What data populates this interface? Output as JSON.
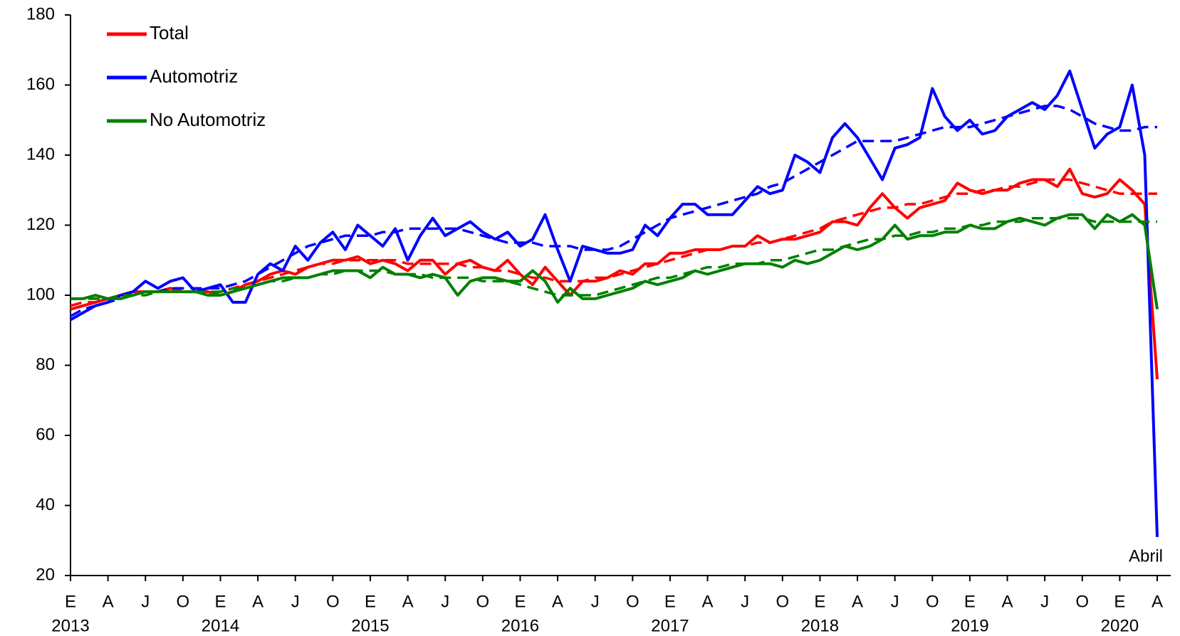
{
  "chart_data": {
    "type": "line",
    "categories": [
      "E",
      null,
      null,
      "A",
      null,
      null,
      "J",
      null,
      null,
      "O",
      null,
      null,
      "E",
      null,
      null,
      "A",
      null,
      null,
      "J",
      null,
      null,
      "O",
      null,
      null,
      "E",
      null,
      null,
      "A",
      null,
      null,
      "J",
      null,
      null,
      "O",
      null,
      null,
      "E",
      null,
      null,
      "A",
      null,
      null,
      "J",
      null,
      null,
      "O",
      null,
      null,
      "E",
      null,
      null,
      "A",
      null,
      null,
      "J",
      null,
      null,
      "O",
      null,
      null,
      "E",
      null,
      null,
      "A",
      null,
      null,
      "J",
      null,
      null,
      "O",
      null,
      null,
      "E",
      null,
      null,
      "A",
      null,
      null,
      "J",
      null,
      null,
      "O",
      null,
      null,
      "E",
      null,
      null,
      "A"
    ],
    "years": [
      "2013",
      "2014",
      "2015",
      "2016",
      "2017",
      "2018",
      "2019",
      "2020"
    ],
    "series": [
      {
        "name": "Total",
        "color": "#ff0000",
        "values": [
          96,
          97,
          98,
          99,
          100,
          101,
          101,
          101,
          102,
          101,
          101,
          101,
          100,
          101,
          103,
          104,
          106,
          107,
          106,
          108,
          109,
          110,
          110,
          111,
          109,
          110,
          109,
          107,
          110,
          110,
          106,
          109,
          110,
          108,
          107,
          110,
          106,
          103,
          108,
          104,
          100,
          104,
          104,
          105,
          107,
          106,
          109,
          109,
          112,
          112,
          113,
          113,
          113,
          114,
          114,
          117,
          115,
          116,
          116,
          117,
          118,
          121,
          121,
          120,
          125,
          129,
          125,
          122,
          125,
          126,
          127,
          132,
          130,
          129,
          130,
          130,
          132,
          133,
          133,
          131,
          136,
          129,
          128,
          129,
          133,
          130,
          126,
          76
        ],
        "trend": [
          97,
          98,
          98,
          99,
          100,
          100,
          101,
          101,
          101,
          101,
          101,
          101,
          101,
          102,
          103,
          104,
          105,
          106,
          107,
          108,
          109,
          109,
          110,
          110,
          110,
          110,
          110,
          109,
          109,
          109,
          109,
          109,
          108,
          108,
          107,
          107,
          106,
          105,
          105,
          104,
          104,
          104,
          105,
          105,
          106,
          107,
          108,
          109,
          110,
          111,
          112,
          113,
          113,
          114,
          114,
          115,
          115,
          116,
          117,
          118,
          119,
          121,
          122,
          123,
          124,
          125,
          125,
          126,
          126,
          127,
          128,
          129,
          129,
          130,
          130,
          131,
          131,
          132,
          133,
          133,
          133,
          132,
          131,
          130,
          129,
          129,
          129,
          129
        ]
      },
      {
        "name": "Automotriz",
        "color": "#0000ff",
        "values": [
          93,
          95,
          97,
          98,
          100,
          101,
          104,
          102,
          104,
          105,
          101,
          102,
          103,
          98,
          98,
          106,
          109,
          107,
          114,
          110,
          115,
          118,
          113,
          120,
          117,
          114,
          119,
          110,
          117,
          122,
          117,
          119,
          121,
          118,
          116,
          118,
          114,
          116,
          123,
          113,
          104,
          114,
          113,
          112,
          112,
          113,
          120,
          117,
          122,
          126,
          126,
          123,
          123,
          123,
          127,
          131,
          129,
          130,
          140,
          138,
          135,
          145,
          149,
          145,
          139,
          133,
          142,
          143,
          145,
          159,
          151,
          147,
          150,
          146,
          147,
          151,
          153,
          155,
          153,
          157,
          164,
          153,
          142,
          146,
          148,
          160,
          140,
          31
        ],
        "trend": [
          94,
          96,
          97,
          98,
          99,
          100,
          101,
          101,
          102,
          102,
          102,
          102,
          102,
          103,
          104,
          106,
          108,
          110,
          112,
          114,
          115,
          116,
          117,
          117,
          117,
          118,
          118,
          119,
          119,
          119,
          119,
          119,
          118,
          117,
          116,
          115,
          115,
          115,
          114,
          114,
          114,
          113,
          113,
          113,
          114,
          116,
          118,
          120,
          122,
          123,
          124,
          125,
          126,
          127,
          128,
          129,
          131,
          132,
          134,
          136,
          138,
          140,
          142,
          144,
          144,
          144,
          144,
          145,
          146,
          147,
          148,
          148,
          148,
          149,
          150,
          151,
          152,
          153,
          154,
          154,
          153,
          151,
          149,
          148,
          147,
          147,
          148,
          148
        ]
      },
      {
        "name": "No Automotriz",
        "color": "#008000",
        "values": [
          99,
          99,
          100,
          99,
          99,
          100,
          101,
          101,
          101,
          101,
          101,
          100,
          100,
          101,
          102,
          103,
          104,
          105,
          105,
          105,
          106,
          107,
          107,
          107,
          105,
          108,
          106,
          106,
          105,
          106,
          105,
          100,
          104,
          105,
          105,
          104,
          104,
          107,
          104,
          98,
          102,
          99,
          99,
          100,
          101,
          102,
          104,
          103,
          104,
          105,
          107,
          106,
          107,
          108,
          109,
          109,
          109,
          108,
          110,
          109,
          110,
          112,
          114,
          113,
          114,
          116,
          120,
          116,
          117,
          117,
          118,
          118,
          120,
          119,
          119,
          121,
          122,
          121,
          120,
          122,
          123,
          123,
          119,
          123,
          121,
          123,
          120,
          96
        ],
        "trend": [
          99,
          99,
          99,
          99,
          100,
          100,
          100,
          101,
          101,
          101,
          101,
          101,
          101,
          102,
          102,
          103,
          104,
          104,
          105,
          105,
          106,
          106,
          107,
          107,
          107,
          107,
          106,
          106,
          106,
          105,
          105,
          105,
          105,
          104,
          104,
          104,
          103,
          102,
          101,
          100,
          100,
          100,
          100,
          101,
          102,
          103,
          104,
          105,
          105,
          106,
          107,
          108,
          108,
          109,
          109,
          109,
          110,
          110,
          111,
          112,
          113,
          113,
          114,
          115,
          116,
          116,
          117,
          117,
          118,
          118,
          119,
          119,
          120,
          120,
          121,
          121,
          121,
          122,
          122,
          122,
          122,
          122,
          121,
          121,
          121,
          121,
          121,
          121
        ]
      }
    ],
    "ylim": [
      20,
      180
    ],
    "yticks": [
      20,
      40,
      60,
      80,
      100,
      120,
      140,
      160,
      180
    ],
    "annotation": "Abril"
  }
}
